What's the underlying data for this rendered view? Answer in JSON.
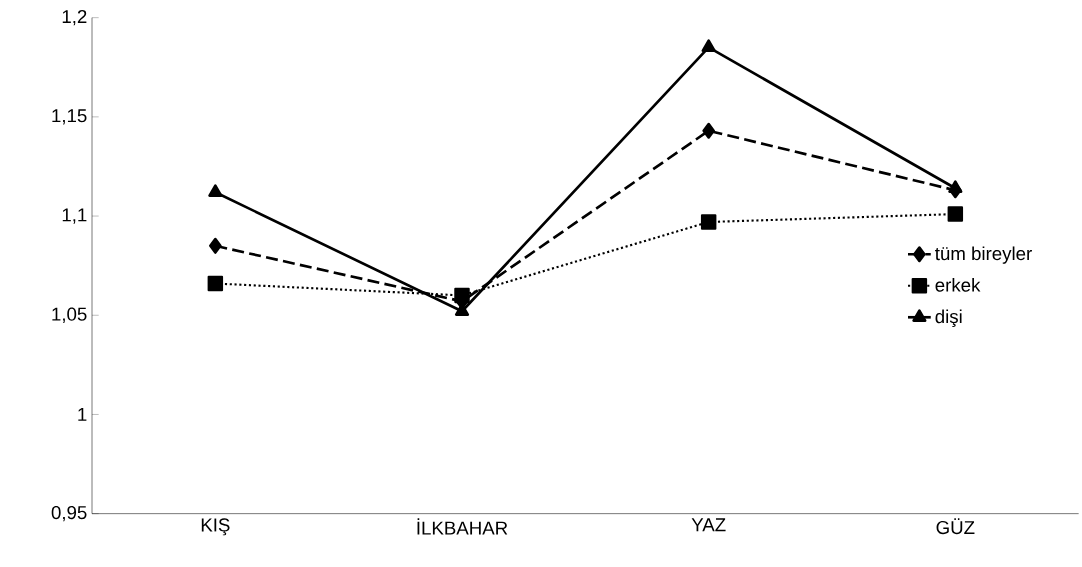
{
  "chart_data": {
    "type": "line",
    "categories": [
      "KIŞ",
      "İLKBAHAR",
      "YAZ",
      "GÜZ"
    ],
    "series": [
      {
        "name": "tüm bireyler",
        "color": "#000000",
        "values": [
          1.085,
          1.057,
          1.143,
          1.113
        ],
        "marker": "diamond",
        "line_style": "dashed"
      },
      {
        "name": "erkek",
        "color": "#000000",
        "values": [
          1.066,
          1.06,
          1.097,
          1.101
        ],
        "marker": "square",
        "line_style": "dotted"
      },
      {
        "name": "dişi",
        "color": "#000000",
        "values": [
          1.112,
          1.052,
          1.185,
          1.114
        ],
        "marker": "triangle",
        "line_style": "solid"
      }
    ],
    "ylim": [
      0.95,
      1.2
    ],
    "yticks": [
      {
        "value": 0.95,
        "label": "0,95"
      },
      {
        "value": 1,
        "label": "1"
      },
      {
        "value": 1.05,
        "label": "1,05"
      },
      {
        "value": 1.1,
        "label": "1,1"
      },
      {
        "value": 1.15,
        "label": "1,15"
      },
      {
        "value": 1.2,
        "label": "1,2"
      }
    ],
    "grid": false,
    "legend": "right"
  }
}
